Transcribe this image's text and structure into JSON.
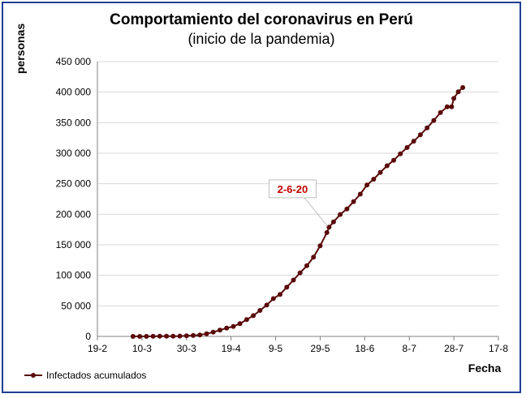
{
  "chart_data": {
    "type": "line",
    "title": "Comportamiento del coronavirus en Perú",
    "subtitle": "(inicio de la pandemia)",
    "ylabel": "personas",
    "xlabel": "Fecha",
    "ylim": [
      0,
      450000
    ],
    "y_ticks": [
      0,
      50000,
      100000,
      150000,
      200000,
      250000,
      300000,
      350000,
      400000,
      450000
    ],
    "y_tick_labels": [
      "0",
      "50 000",
      "100 000",
      "150 000",
      "200 000",
      "250 000",
      "300 000",
      "350 000",
      "400 000",
      "450 000"
    ],
    "xlim": [
      "2020-02-19",
      "2020-08-17"
    ],
    "x_ticks": [
      "2020-02-19",
      "2020-03-10",
      "2020-03-30",
      "2020-04-19",
      "2020-05-09",
      "2020-05-29",
      "2020-06-18",
      "2020-07-08",
      "2020-07-28",
      "2020-08-17"
    ],
    "x_tick_labels": [
      "19-2",
      "10-3",
      "30-3",
      "19-4",
      "9-5",
      "29-5",
      "18-6",
      "8-7",
      "28-7",
      "17-8"
    ],
    "grid": "horizontal",
    "legend_position": "bottom-left",
    "annotation": {
      "text": "2-6-20",
      "x": "2020-06-02",
      "y": 178000
    },
    "series": [
      {
        "name": "Infectados acumulados",
        "color": "#5a0a0a",
        "points": [
          [
            "2020-03-06",
            1
          ],
          [
            "2020-03-09",
            11
          ],
          [
            "2020-03-12",
            22
          ],
          [
            "2020-03-15",
            71
          ],
          [
            "2020-03-18",
            234
          ],
          [
            "2020-03-21",
            363
          ],
          [
            "2020-03-24",
            416
          ],
          [
            "2020-03-27",
            580
          ],
          [
            "2020-03-30",
            950
          ],
          [
            "2020-04-02",
            1414
          ],
          [
            "2020-04-05",
            2281
          ],
          [
            "2020-04-08",
            4342
          ],
          [
            "2020-04-11",
            6848
          ],
          [
            "2020-04-14",
            10303
          ],
          [
            "2020-04-17",
            13489
          ],
          [
            "2020-04-20",
            16325
          ],
          [
            "2020-04-23",
            20914
          ],
          [
            "2020-04-26",
            27517
          ],
          [
            "2020-04-29",
            33931
          ],
          [
            "2020-05-02",
            42534
          ],
          [
            "2020-05-05",
            51189
          ],
          [
            "2020-05-08",
            61847
          ],
          [
            "2020-05-11",
            68822
          ],
          [
            "2020-05-14",
            80604
          ],
          [
            "2020-05-17",
            92273
          ],
          [
            "2020-05-20",
            104020
          ],
          [
            "2020-05-23",
            115754
          ],
          [
            "2020-05-26",
            129751
          ],
          [
            "2020-05-29",
            148285
          ],
          [
            "2020-06-01",
            170039
          ],
          [
            "2020-06-02",
            178914
          ],
          [
            "2020-06-04",
            187400
          ],
          [
            "2020-06-07",
            199696
          ],
          [
            "2020-06-10",
            208823
          ],
          [
            "2020-06-13",
            220749
          ],
          [
            "2020-06-16",
            232992
          ],
          [
            "2020-06-19",
            247925
          ],
          [
            "2020-06-22",
            257447
          ],
          [
            "2020-06-25",
            268602
          ],
          [
            "2020-06-28",
            279419
          ],
          [
            "2020-07-01",
            288477
          ],
          [
            "2020-07-04",
            299080
          ],
          [
            "2020-07-07",
            309278
          ],
          [
            "2020-07-10",
            319646
          ],
          [
            "2020-07-13",
            330123
          ],
          [
            "2020-07-16",
            341586
          ],
          [
            "2020-07-19",
            353590
          ],
          [
            "2020-07-22",
            366550
          ],
          [
            "2020-07-25",
            375961
          ],
          [
            "2020-07-27",
            376000
          ],
          [
            "2020-07-28",
            389717
          ],
          [
            "2020-07-30",
            400683
          ],
          [
            "2020-08-01",
            407492
          ]
        ]
      }
    ]
  }
}
